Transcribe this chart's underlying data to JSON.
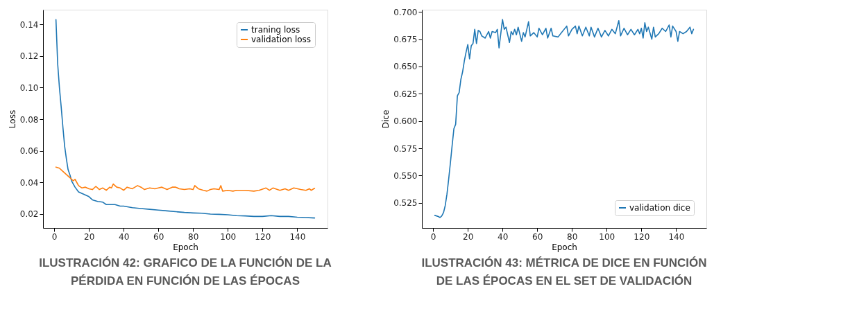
{
  "chart_data": [
    {
      "type": "line",
      "xlabel": "Epoch",
      "ylabel": "Loss",
      "xlim": [
        -6.45,
        157.45
      ],
      "ylim": [
        0.0112,
        0.1493
      ],
      "xticks": [
        0,
        20,
        40,
        60,
        80,
        100,
        120,
        140
      ],
      "yticks": [
        0.02,
        0.04,
        0.06,
        0.08,
        {
          "value": 0.1,
          "label": "0.10"
        },
        0.12,
        0.14
      ],
      "grid": false,
      "legend": "top right",
      "marker": "none",
      "line_style": "solid",
      "annotations": [
        "ILUSTRACIÓN 42: GRAFICO DE LA FUNCIÓN DE LA PÉRDIDA EN FUNCIÓN DE LAS ÉPOCAS"
      ],
      "series": [
        {
          "name": "traning loss",
          "color": "#1f77b4",
          "x": [
            1,
            2,
            3,
            4,
            5,
            6,
            7,
            8,
            9,
            10,
            12,
            14,
            16,
            18,
            20,
            22,
            25,
            28,
            30,
            35,
            38,
            40,
            45,
            50,
            55,
            60,
            65,
            70,
            75,
            80,
            85,
            90,
            95,
            100,
            105,
            110,
            115,
            120,
            125,
            130,
            135,
            140,
            145,
            150
          ],
          "values": [
            0.143,
            0.115,
            0.1,
            0.088,
            0.075,
            0.063,
            0.055,
            0.048,
            0.045,
            0.041,
            0.037,
            0.034,
            0.033,
            0.032,
            0.031,
            0.029,
            0.028,
            0.0275,
            0.026,
            0.026,
            0.025,
            0.025,
            0.024,
            0.0235,
            0.023,
            0.0225,
            0.022,
            0.0215,
            0.021,
            0.0207,
            0.0205,
            0.02,
            0.0198,
            0.0195,
            0.019,
            0.0188,
            0.0185,
            0.0185,
            0.019,
            0.0185,
            0.0185,
            0.018,
            0.0178,
            0.0175
          ]
        },
        {
          "name": "validation loss",
          "color": "#ff7f0e",
          "x": [
            1,
            3,
            5,
            7,
            9,
            10,
            11,
            12,
            14,
            16,
            18,
            20,
            22,
            24,
            26,
            28,
            30,
            32,
            33,
            34,
            36,
            38,
            40,
            42,
            45,
            48,
            50,
            52,
            55,
            58,
            60,
            62,
            65,
            68,
            70,
            72,
            75,
            78,
            80,
            81,
            83,
            86,
            88,
            90,
            92,
            95,
            96,
            97,
            100,
            103,
            105,
            110,
            115,
            118,
            122,
            124,
            126,
            130,
            133,
            135,
            138,
            142,
            145,
            147,
            148,
            150
          ],
          "values": [
            0.0497,
            0.049,
            0.047,
            0.045,
            0.043,
            0.042,
            0.041,
            0.042,
            0.038,
            0.0365,
            0.037,
            0.036,
            0.0355,
            0.0375,
            0.0355,
            0.0365,
            0.035,
            0.037,
            0.0365,
            0.039,
            0.037,
            0.0365,
            0.035,
            0.037,
            0.036,
            0.038,
            0.037,
            0.0355,
            0.0365,
            0.036,
            0.0365,
            0.037,
            0.0355,
            0.037,
            0.037,
            0.036,
            0.0355,
            0.036,
            0.0355,
            0.038,
            0.036,
            0.035,
            0.0345,
            0.0355,
            0.036,
            0.0355,
            0.038,
            0.0345,
            0.035,
            0.0345,
            0.035,
            0.035,
            0.0345,
            0.035,
            0.0365,
            0.035,
            0.0365,
            0.035,
            0.036,
            0.035,
            0.0365,
            0.0355,
            0.035,
            0.036,
            0.035,
            0.0363
          ]
        }
      ]
    },
    {
      "type": "line",
      "xlabel": "Epoch",
      "ylabel": "Dice",
      "xlim": [
        -6.45,
        157.45
      ],
      "ylim": [
        0.502,
        0.702
      ],
      "xticks": [
        0,
        20,
        40,
        60,
        80,
        100,
        120,
        140
      ],
      "yticks": [
        0.525,
        {
          "value": 0.55,
          "label": "0.550"
        },
        0.575,
        {
          "value": 0.6,
          "label": "0.600"
        },
        0.625,
        {
          "value": 0.65,
          "label": "0.650"
        },
        0.675,
        {
          "value": 0.7,
          "label": "0.700"
        }
      ],
      "grid": false,
      "legend": "bottom right",
      "marker": "none",
      "line_style": "solid",
      "annotations": [
        "ILUSTRACIÓN 43: MÉTRICA DE DICE EN FUNCIÓN DE LAS ÉPOCAS EN EL SET DE VALIDACIÓN"
      ],
      "series": [
        {
          "name": "validation dice",
          "color": "#1f77b4",
          "x": [
            1,
            3,
            4,
            5,
            6,
            7,
            8,
            9,
            10,
            11,
            12,
            13,
            14,
            15,
            16,
            17,
            18,
            19,
            20,
            21,
            22,
            23,
            24,
            25,
            26,
            27,
            28,
            30,
            32,
            33,
            34,
            36,
            37,
            38,
            40,
            41,
            42,
            44,
            45,
            46,
            47,
            48,
            49,
            51,
            52,
            53,
            55,
            56,
            58,
            60,
            61,
            63,
            65,
            66,
            68,
            69,
            72,
            74,
            77,
            78,
            80,
            82,
            83,
            84,
            86,
            88,
            90,
            91,
            93,
            95,
            97,
            99,
            101,
            103,
            105,
            107,
            108,
            110,
            112,
            114,
            116,
            118,
            119,
            120,
            121,
            122,
            123,
            124,
            126,
            127,
            128,
            130,
            132,
            134,
            136,
            137,
            138,
            140,
            141,
            142,
            144,
            146,
            148,
            149,
            150
          ],
          "values": [
            0.5135,
            0.5125,
            0.5115,
            0.513,
            0.516,
            0.5225,
            0.533,
            0.547,
            0.562,
            0.578,
            0.593,
            0.597,
            0.623,
            0.626,
            0.638,
            0.645,
            0.655,
            0.663,
            0.67,
            0.657,
            0.669,
            0.671,
            0.684,
            0.671,
            0.683,
            0.682,
            0.678,
            0.676,
            0.682,
            0.676,
            0.682,
            0.681,
            0.684,
            0.667,
            0.693,
            0.684,
            0.686,
            0.672,
            0.682,
            0.679,
            0.684,
            0.679,
            0.686,
            0.673,
            0.681,
            0.677,
            0.691,
            0.678,
            0.681,
            0.677,
            0.685,
            0.679,
            0.685,
            0.676,
            0.685,
            0.678,
            0.677,
            0.681,
            0.687,
            0.678,
            0.684,
            0.687,
            0.68,
            0.687,
            0.678,
            0.686,
            0.678,
            0.686,
            0.677,
            0.685,
            0.677,
            0.683,
            0.678,
            0.684,
            0.68,
            0.692,
            0.678,
            0.685,
            0.679,
            0.684,
            0.679,
            0.684,
            0.68,
            0.685,
            0.676,
            0.69,
            0.682,
            0.686,
            0.675,
            0.686,
            0.677,
            0.68,
            0.685,
            0.682,
            0.688,
            0.677,
            0.687,
            0.682,
            0.673,
            0.682,
            0.68,
            0.682,
            0.686,
            0.68,
            0.684
          ]
        }
      ]
    }
  ]
}
